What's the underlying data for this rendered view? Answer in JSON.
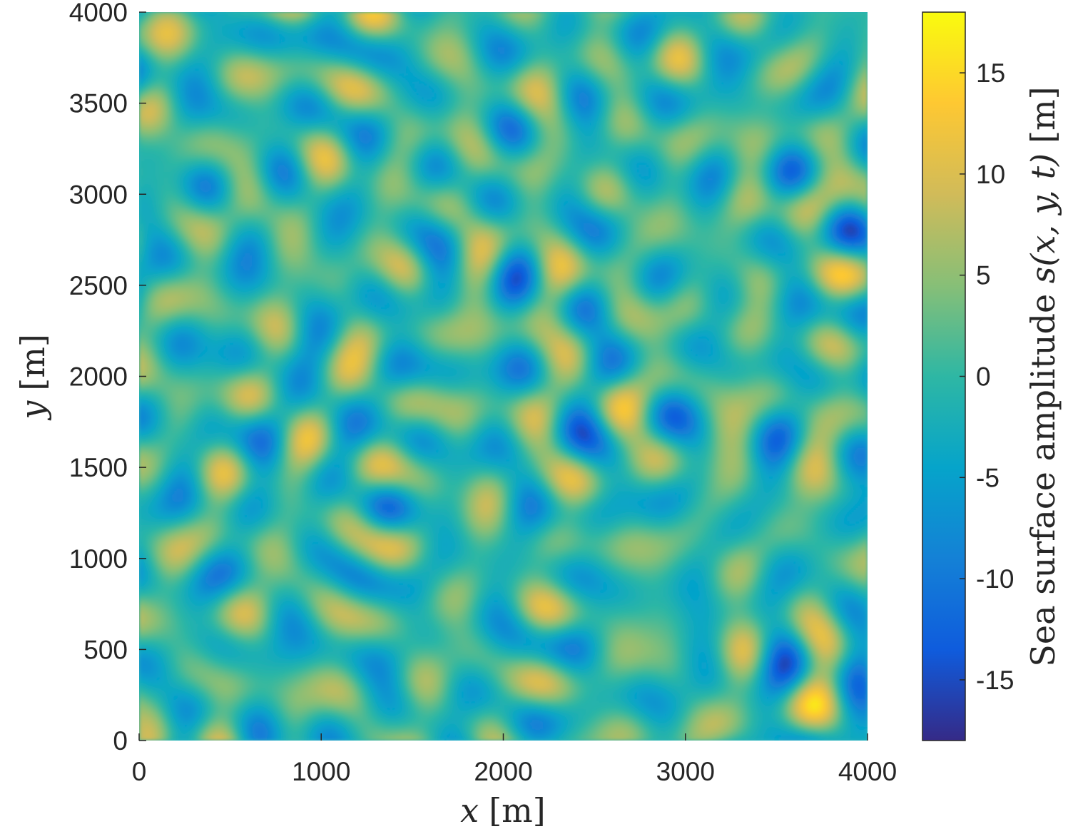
{
  "chart_data": {
    "type": "heatmap",
    "title": "",
    "xlabel": {
      "var": "x",
      "unit": "[m]"
    },
    "ylabel": {
      "var": "y",
      "unit": "[m]"
    },
    "xlim": [
      0,
      4000
    ],
    "ylim": [
      0,
      4000
    ],
    "x_ticks": [
      {
        "value": 0,
        "label": "0"
      },
      {
        "value": 1000,
        "label": "1000"
      },
      {
        "value": 2000,
        "label": "2000"
      },
      {
        "value": 3000,
        "label": "3000"
      },
      {
        "value": 4000,
        "label": "4000"
      }
    ],
    "y_ticks": [
      {
        "value": 0,
        "label": "0"
      },
      {
        "value": 500,
        "label": "500"
      },
      {
        "value": 1000,
        "label": "1000"
      },
      {
        "value": 1500,
        "label": "1500"
      },
      {
        "value": 2000,
        "label": "2000"
      },
      {
        "value": 2500,
        "label": "2500"
      },
      {
        "value": 3000,
        "label": "3000"
      },
      {
        "value": 3500,
        "label": "3500"
      },
      {
        "value": 4000,
        "label": "4000"
      }
    ],
    "colorbar": {
      "label": {
        "text": "Sea surface amplitude ",
        "math": "s(x, y, t)",
        "unit": "[m]"
      },
      "range": [
        -18,
        18
      ],
      "colormap": "parula",
      "ticks": [
        {
          "value": -15,
          "label": "-15"
        },
        {
          "value": -10,
          "label": "-10"
        },
        {
          "value": -5,
          "label": "-5"
        },
        {
          "value": 0,
          "label": "0"
        },
        {
          "value": 5,
          "label": "5"
        },
        {
          "value": 10,
          "label": "10"
        },
        {
          "value": 15,
          "label": "15"
        }
      ]
    },
    "grid": false,
    "colors": {
      "parula": [
        "#352a87",
        "#0f5cdd",
        "#1481d6",
        "#06a4ca",
        "#2eb7a4",
        "#87bf77",
        "#d1bb59",
        "#fec832",
        "#f9fb0e"
      ]
    }
  }
}
